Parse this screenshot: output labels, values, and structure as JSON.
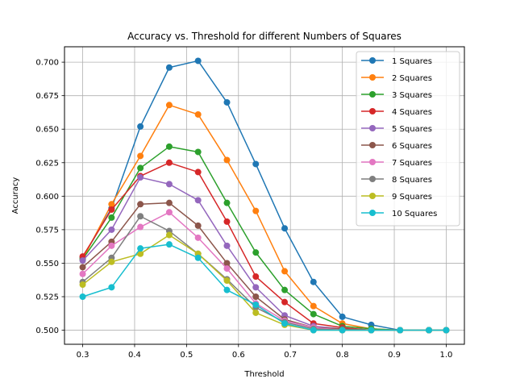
{
  "chart_data": {
    "type": "line",
    "title": "Accuracy vs. Threshold for different Numbers of Squares",
    "xlabel": "Threshold",
    "ylabel": "Accuracy",
    "xlim": [
      0.265,
      1.035
    ],
    "ylim": [
      0.4895,
      0.7115
    ],
    "xticks": [
      0.3,
      0.4,
      0.5,
      0.6,
      0.7,
      0.8,
      0.9,
      1.0
    ],
    "xtick_labels": [
      "0.3",
      "0.4",
      "0.5",
      "0.6",
      "0.7",
      "0.8",
      "0.9",
      "1.0"
    ],
    "yticks": [
      0.5,
      0.525,
      0.55,
      0.575,
      0.6,
      0.625,
      0.65,
      0.675,
      0.7
    ],
    "ytick_labels": [
      "0.500",
      "0.525",
      "0.550",
      "0.575",
      "0.600",
      "0.625",
      "0.650",
      "0.675",
      "0.700"
    ],
    "grid": true,
    "legend_position": "top-right",
    "x": [
      0.3,
      0.3556,
      0.4111,
      0.4667,
      0.5222,
      0.5778,
      0.6333,
      0.6889,
      0.7444,
      0.8,
      0.8556,
      0.9111,
      0.9667,
      1.0
    ],
    "series": [
      {
        "name": "1 Squares",
        "color": "#1f77b4",
        "values": [
          0.554,
          0.591,
          0.652,
          0.696,
          0.701,
          0.67,
          0.624,
          0.576,
          0.536,
          0.51,
          0.504,
          0.5,
          0.5,
          0.5
        ]
      },
      {
        "name": "2 Squares",
        "color": "#ff7f0e",
        "values": [
          0.553,
          0.594,
          0.63,
          0.668,
          0.661,
          0.627,
          0.589,
          0.544,
          0.518,
          0.505,
          0.501,
          0.5,
          0.5,
          0.5
        ]
      },
      {
        "name": "3 Squares",
        "color": "#2ca02c",
        "values": [
          0.553,
          0.584,
          0.621,
          0.637,
          0.633,
          0.595,
          0.558,
          0.53,
          0.512,
          0.503,
          0.501,
          0.5,
          0.5,
          0.5
        ]
      },
      {
        "name": "4 Squares",
        "color": "#d62728",
        "values": [
          0.555,
          0.59,
          0.615,
          0.625,
          0.618,
          0.581,
          0.54,
          0.521,
          0.505,
          0.502,
          0.5,
          0.5,
          0.5,
          0.5
        ]
      },
      {
        "name": "5 Squares",
        "color": "#9467bd",
        "values": [
          0.552,
          0.575,
          0.614,
          0.609,
          0.597,
          0.563,
          0.532,
          0.511,
          0.503,
          0.501,
          0.5,
          0.5,
          0.5,
          0.5
        ]
      },
      {
        "name": "6 Squares",
        "color": "#8c564b",
        "values": [
          0.547,
          0.566,
          0.594,
          0.595,
          0.578,
          0.55,
          0.525,
          0.508,
          0.502,
          0.501,
          0.5,
          0.5,
          0.5,
          0.5
        ]
      },
      {
        "name": "7 Squares",
        "color": "#e377c2",
        "values": [
          0.542,
          0.563,
          0.577,
          0.588,
          0.569,
          0.546,
          0.52,
          0.507,
          0.502,
          0.5,
          0.5,
          0.5,
          0.5,
          0.5
        ]
      },
      {
        "name": "8 Squares",
        "color": "#7f7f7f",
        "values": [
          0.536,
          0.554,
          0.585,
          0.574,
          0.557,
          0.538,
          0.517,
          0.506,
          0.501,
          0.5,
          0.5,
          0.5,
          0.5,
          0.5
        ]
      },
      {
        "name": "9 Squares",
        "color": "#bcbd22",
        "values": [
          0.534,
          0.551,
          0.557,
          0.571,
          0.557,
          0.537,
          0.513,
          0.504,
          0.5,
          0.5,
          0.5,
          0.5,
          0.5,
          0.5
        ]
      },
      {
        "name": "10 Squares",
        "color": "#17becf",
        "values": [
          0.525,
          0.532,
          0.561,
          0.564,
          0.554,
          0.53,
          0.519,
          0.505,
          0.5,
          0.5,
          0.5,
          0.5,
          0.5,
          0.5
        ]
      }
    ]
  }
}
